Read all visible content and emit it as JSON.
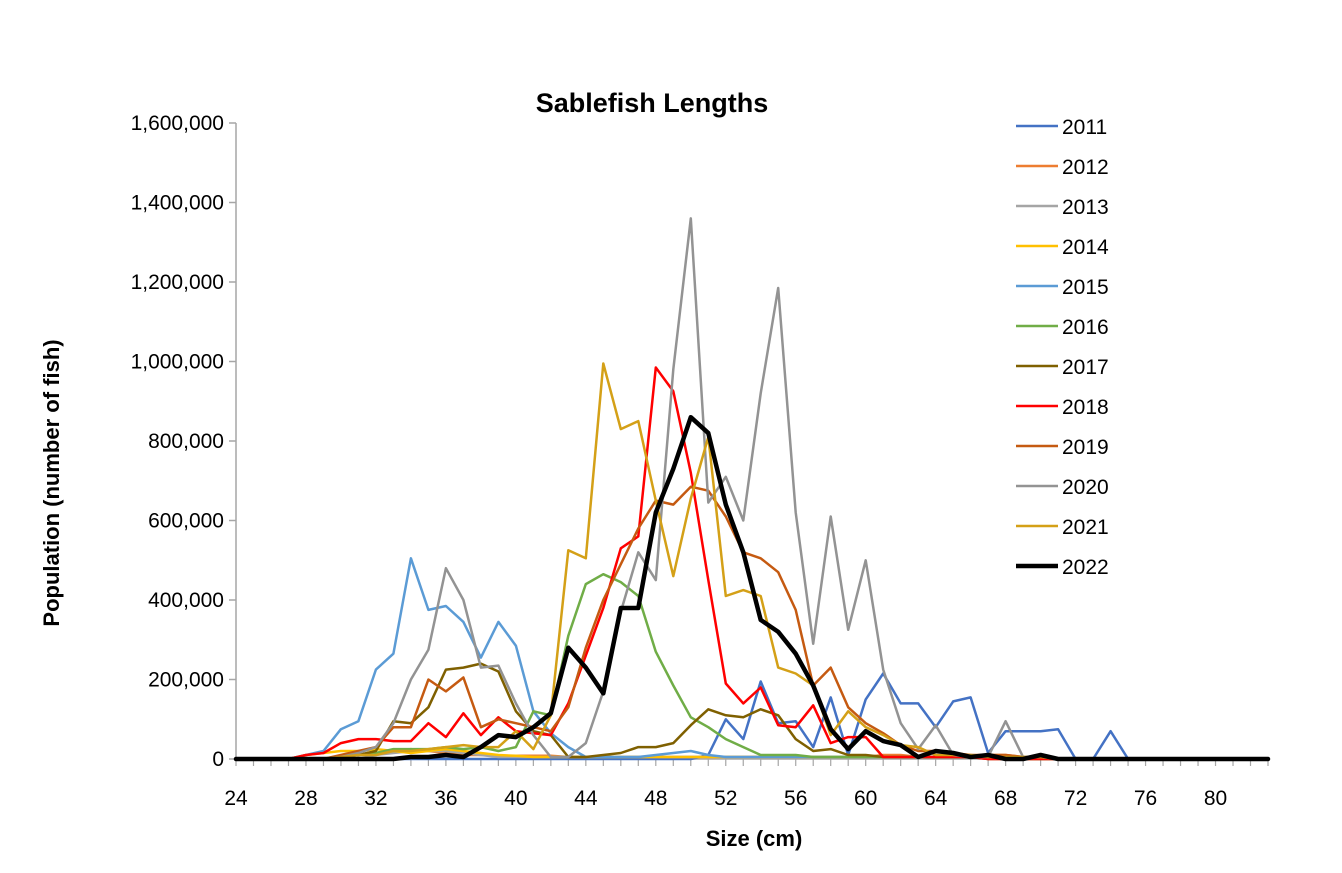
{
  "chart_data": {
    "type": "line",
    "title": "Sablefish Lengths",
    "xlabel": "Size (cm)",
    "ylabel": "Population (number of fish)",
    "xlim": [
      24,
      83
    ],
    "ylim": [
      0,
      1600000
    ],
    "x_ticks": [
      "24",
      "28",
      "32",
      "36",
      "40",
      "44",
      "48",
      "52",
      "56",
      "60",
      "64",
      "68",
      "72",
      "76",
      "80"
    ],
    "y_ticks": [
      "0",
      "200,000",
      "400,000",
      "600,000",
      "800,000",
      "1,000,000",
      "1,200,000",
      "1,400,000",
      "1,600,000"
    ],
    "grid": false,
    "legend_position": "right",
    "x": [
      24,
      25,
      26,
      27,
      28,
      29,
      30,
      31,
      32,
      33,
      34,
      35,
      36,
      37,
      38,
      39,
      40,
      41,
      42,
      43,
      44,
      45,
      46,
      47,
      48,
      49,
      50,
      51,
      52,
      53,
      54,
      55,
      56,
      57,
      58,
      59,
      60,
      61,
      62,
      63,
      64,
      65,
      66,
      67,
      68,
      69,
      70,
      71,
      72,
      73,
      74,
      75,
      76,
      77,
      78,
      79,
      80,
      81,
      82,
      83
    ],
    "series": [
      {
        "name": "2011",
        "color": "#4472C4",
        "width": 2.5,
        "values": [
          0,
          0,
          0,
          0,
          0,
          0,
          0,
          0,
          0,
          0,
          0,
          0,
          0,
          0,
          0,
          0,
          0,
          0,
          0,
          0,
          0,
          0,
          0,
          0,
          0,
          0,
          0,
          10000,
          100000,
          50000,
          195000,
          90000,
          95000,
          30000,
          155000,
          10000,
          150000,
          215000,
          140000,
          140000,
          80000,
          145000,
          155000,
          15000,
          70000,
          70000,
          70000,
          75000,
          0,
          0,
          70000,
          0,
          0,
          0,
          0,
          0,
          0,
          0,
          0,
          0
        ]
      },
      {
        "name": "2012",
        "color": "#ED7D31",
        "width": 2.5,
        "values": [
          0,
          0,
          0,
          0,
          0,
          0,
          5000,
          10000,
          15000,
          20000,
          25000,
          20000,
          15000,
          10000,
          10000,
          8000,
          8000,
          8000,
          8000,
          5000,
          5000,
          5000,
          5000,
          5000,
          5000,
          5000,
          5000,
          5000,
          5000,
          5000,
          5000,
          5000,
          5000,
          5000,
          5000,
          5000,
          5000,
          10000,
          10000,
          5000,
          5000,
          5000,
          5000,
          10000,
          10000,
          5000,
          5000,
          0,
          0,
          0,
          0,
          0,
          0,
          0,
          0,
          0,
          0,
          0,
          0,
          0
        ]
      },
      {
        "name": "2013",
        "color": "#A5A5A5",
        "width": 2.5,
        "values": [
          0,
          0,
          0,
          0,
          0,
          0,
          0,
          0,
          10000,
          15000,
          20000,
          20000,
          20000,
          15000,
          10000,
          5000,
          5000,
          5000,
          5000,
          5000,
          5000,
          5000,
          5000,
          5000,
          5000,
          5000,
          5000,
          5000,
          5000,
          5000,
          5000,
          5000,
          5000,
          5000,
          5000,
          5000,
          5000,
          5000,
          5000,
          5000,
          5000,
          5000,
          5000,
          5000,
          5000,
          5000,
          5000,
          0,
          0,
          0,
          0,
          0,
          0,
          0,
          0,
          0,
          0,
          0,
          0,
          0
        ]
      },
      {
        "name": "2014",
        "color": "#FFC000",
        "width": 2.5,
        "values": [
          0,
          0,
          0,
          0,
          10000,
          15000,
          20000,
          20000,
          25000,
          20000,
          15000,
          20000,
          25000,
          20000,
          15000,
          10000,
          8000,
          5000,
          5000,
          5000,
          5000,
          5000,
          5000,
          5000,
          5000,
          5000,
          5000,
          5000,
          5000,
          5000,
          5000,
          5000,
          5000,
          5000,
          5000,
          5000,
          5000,
          5000,
          5000,
          5000,
          5000,
          5000,
          5000,
          5000,
          5000,
          5000,
          5000,
          0,
          0,
          0,
          0,
          0,
          0,
          0,
          0,
          0,
          0,
          0,
          0,
          0
        ]
      },
      {
        "name": "2015",
        "color": "#5B9BD5",
        "width": 2.5,
        "values": [
          0,
          0,
          0,
          0,
          10000,
          20000,
          75000,
          95000,
          225000,
          265000,
          505000,
          375000,
          385000,
          345000,
          255000,
          345000,
          285000,
          120000,
          65000,
          30000,
          5000,
          5000,
          5000,
          5000,
          10000,
          15000,
          20000,
          10000,
          5000,
          5000,
          5000,
          5000,
          5000,
          5000,
          5000,
          5000,
          5000,
          5000,
          5000,
          5000,
          5000,
          5000,
          5000,
          5000,
          5000,
          5000,
          5000,
          0,
          0,
          0,
          0,
          0,
          0,
          0,
          0,
          0,
          0,
          0,
          0,
          0
        ]
      },
      {
        "name": "2016",
        "color": "#70AD47",
        "width": 2.5,
        "values": [
          0,
          0,
          0,
          0,
          0,
          0,
          5000,
          10000,
          15000,
          25000,
          25000,
          25000,
          30000,
          25000,
          30000,
          20000,
          30000,
          120000,
          110000,
          310000,
          440000,
          465000,
          445000,
          410000,
          270000,
          185000,
          105000,
          80000,
          50000,
          30000,
          10000,
          10000,
          10000,
          5000,
          5000,
          5000,
          5000,
          5000,
          5000,
          5000,
          5000,
          5000,
          5000,
          5000,
          5000,
          0,
          0,
          0,
          0,
          0,
          0,
          0,
          0,
          0,
          0,
          0,
          0,
          0,
          0,
          0
        ]
      },
      {
        "name": "2017",
        "color": "#7F6000",
        "width": 2.5,
        "values": [
          0,
          0,
          0,
          0,
          0,
          0,
          5000,
          10000,
          20000,
          95000,
          90000,
          130000,
          225000,
          230000,
          240000,
          220000,
          120000,
          70000,
          60000,
          5000,
          5000,
          10000,
          15000,
          30000,
          30000,
          40000,
          85000,
          125000,
          110000,
          105000,
          125000,
          110000,
          50000,
          20000,
          25000,
          10000,
          10000,
          5000,
          5000,
          5000,
          5000,
          5000,
          5000,
          0,
          0,
          0,
          0,
          0,
          0,
          0,
          0,
          0,
          0,
          0,
          0,
          0,
          0,
          0,
          0,
          0
        ]
      },
      {
        "name": "2018",
        "color": "#FF0000",
        "width": 2.5,
        "values": [
          0,
          0,
          0,
          0,
          10000,
          15000,
          40000,
          50000,
          50000,
          45000,
          45000,
          90000,
          55000,
          115000,
          60000,
          105000,
          70000,
          65000,
          60000,
          140000,
          260000,
          380000,
          530000,
          560000,
          985000,
          925000,
          720000,
          450000,
          190000,
          140000,
          180000,
          85000,
          80000,
          135000,
          40000,
          55000,
          55000,
          5000,
          5000,
          5000,
          5000,
          5000,
          5000,
          0,
          0,
          0,
          0,
          0,
          0,
          0,
          0,
          0,
          0,
          0,
          0,
          0,
          0,
          0,
          0,
          0
        ]
      },
      {
        "name": "2019",
        "color": "#C55A11",
        "width": 2.5,
        "values": [
          0,
          0,
          0,
          0,
          0,
          0,
          10000,
          20000,
          30000,
          80000,
          80000,
          200000,
          170000,
          205000,
          80000,
          100000,
          90000,
          80000,
          70000,
          130000,
          280000,
          400000,
          490000,
          580000,
          650000,
          640000,
          685000,
          675000,
          610000,
          520000,
          505000,
          470000,
          375000,
          185000,
          230000,
          130000,
          90000,
          65000,
          35000,
          20000,
          20000,
          15000,
          10000,
          10000,
          10000,
          5000,
          5000,
          0,
          0,
          0,
          0,
          0,
          0,
          0,
          0,
          0,
          0,
          0,
          0,
          0
        ]
      },
      {
        "name": "2020",
        "color": "#939393",
        "width": 2.5,
        "values": [
          0,
          0,
          0,
          0,
          0,
          0,
          5000,
          15000,
          30000,
          90000,
          200000,
          275000,
          480000,
          400000,
          230000,
          235000,
          140000,
          60000,
          5000,
          5000,
          40000,
          170000,
          370000,
          520000,
          450000,
          980000,
          1360000,
          645000,
          710000,
          600000,
          920000,
          1185000,
          620000,
          290000,
          610000,
          325000,
          500000,
          225000,
          90000,
          25000,
          85000,
          10000,
          5000,
          5000,
          95000,
          5000,
          5000,
          0,
          0,
          0,
          0,
          0,
          0,
          0,
          0,
          0,
          0,
          0,
          0,
          0
        ]
      },
      {
        "name": "2021",
        "color": "#D4A017",
        "width": 2.5,
        "values": [
          0,
          0,
          0,
          0,
          0,
          0,
          5000,
          10000,
          10000,
          20000,
          20000,
          25000,
          30000,
          35000,
          30000,
          30000,
          70000,
          25000,
          110000,
          525000,
          505000,
          995000,
          830000,
          850000,
          650000,
          460000,
          655000,
          810000,
          410000,
          425000,
          410000,
          230000,
          215000,
          185000,
          60000,
          120000,
          80000,
          60000,
          35000,
          30000,
          10000,
          10000,
          10000,
          5000,
          5000,
          5000,
          5000,
          0,
          0,
          0,
          0,
          0,
          0,
          0,
          0,
          0,
          0,
          0,
          0,
          0
        ]
      },
      {
        "name": "2022",
        "color": "#000000",
        "width": 4.5,
        "values": [
          0,
          0,
          0,
          0,
          0,
          0,
          0,
          0,
          0,
          0,
          5000,
          5000,
          10000,
          5000,
          30000,
          60000,
          55000,
          80000,
          115000,
          280000,
          230000,
          165000,
          380000,
          380000,
          620000,
          730000,
          860000,
          820000,
          640000,
          520000,
          350000,
          320000,
          265000,
          185000,
          75000,
          25000,
          70000,
          45000,
          35000,
          5000,
          20000,
          15000,
          5000,
          10000,
          0,
          0,
          10000,
          0,
          0,
          0,
          0,
          0,
          0,
          0,
          0,
          0,
          0,
          0,
          0,
          0
        ]
      }
    ]
  }
}
